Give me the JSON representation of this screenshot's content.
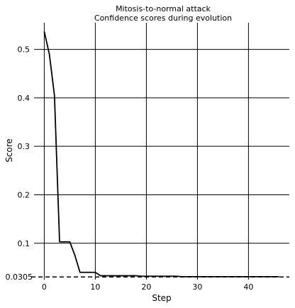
{
  "chart_data": {
    "type": "line",
    "title": "Mitosis-to-normal attack",
    "subtitle": "Confidence scores during evolution",
    "xlabel": "Step",
    "ylabel": "Score",
    "xlim": [
      -2,
      48
    ],
    "ylim": [
      0.025,
      0.555
    ],
    "xticks": [
      0,
      10,
      20,
      30,
      40
    ],
    "yticks": [
      0.1,
      0.2,
      0.3,
      0.4,
      0.5
    ],
    "ytick_labels": [
      "0.1",
      "0.2",
      "0.3",
      "0.4",
      "0.5"
    ],
    "reference_line": {
      "value": 0.0305,
      "label": "0.0305",
      "style": "dashed"
    },
    "grid": true,
    "series": [
      {
        "x": [
          0,
          1,
          2,
          3,
          4,
          5,
          6,
          7,
          8,
          9,
          10,
          11,
          12,
          13,
          14,
          15,
          16,
          17,
          18,
          19,
          20,
          21,
          22,
          23,
          24,
          25,
          26,
          27,
          28,
          29,
          30,
          31,
          32,
          33,
          34,
          35,
          36,
          37,
          38,
          39,
          40,
          41,
          42,
          43,
          44,
          45,
          46
        ],
        "y": [
          0.537,
          0.49,
          0.405,
          0.103,
          0.103,
          0.103,
          0.075,
          0.04,
          0.04,
          0.04,
          0.04,
          0.033,
          0.033,
          0.033,
          0.033,
          0.033,
          0.033,
          0.033,
          0.033,
          0.032,
          0.032,
          0.032,
          0.032,
          0.032,
          0.032,
          0.032,
          0.032,
          0.031,
          0.031,
          0.031,
          0.031,
          0.031,
          0.031,
          0.031,
          0.031,
          0.031,
          0.031,
          0.031,
          0.031,
          0.031,
          0.031,
          0.031,
          0.031,
          0.031,
          0.031,
          0.031,
          0.031
        ],
        "color": "#000000"
      }
    ]
  }
}
